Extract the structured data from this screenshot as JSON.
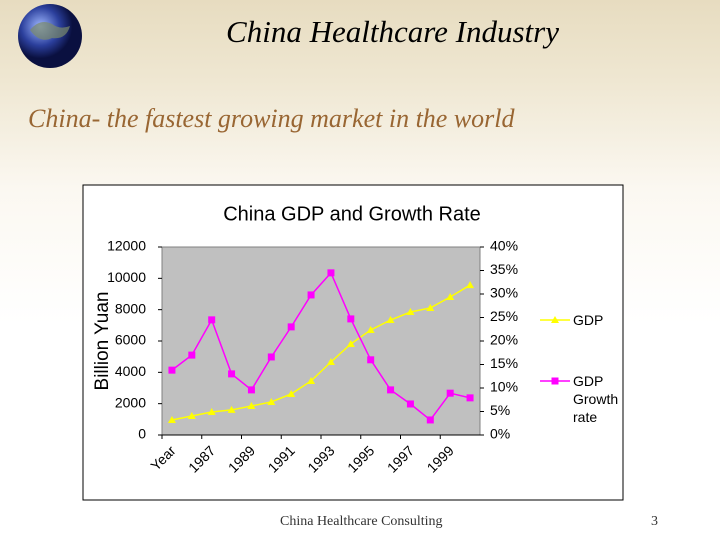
{
  "slide": {
    "title": "China Healthcare Industry",
    "subtitle": "China- the fastest growing market in the world",
    "footer": "China Healthcare Consulting",
    "page_number": "3"
  },
  "chart_data": {
    "type": "line",
    "title": "China GDP  and Growth Rate",
    "y_label": "Billion Yuan",
    "categories": [
      "Year",
      null,
      "1987",
      null,
      "1989",
      null,
      "1991",
      null,
      "1993",
      null,
      "1995",
      null,
      "1997",
      null,
      "1999",
      null
    ],
    "series": [
      {
        "name": "GDP",
        "color": "#ffff00",
        "marker": "triangle",
        "values": [
          960,
          1210,
          1470,
          1600,
          1850,
          2110,
          2620,
          3450,
          4660,
          5810,
          6700,
          7340,
          7850,
          8110,
          8810,
          9570
        ]
      },
      {
        "name": "GDP Growth rate",
        "color": "#ff00ff",
        "marker": "square",
        "axis": "y2",
        "values": [
          13.8,
          17.0,
          24.5,
          13.0,
          9.6,
          16.6,
          23.0,
          29.8,
          34.5,
          24.7,
          16.0,
          9.6,
          6.6,
          3.2,
          8.9,
          7.9
        ]
      }
    ],
    "ylim": [
      0,
      12000
    ],
    "yticks": [
      0,
      2000,
      4000,
      6000,
      8000,
      10000,
      12000
    ],
    "y2lim": [
      0,
      40
    ],
    "y2ticks": [
      {
        "value": 0,
        "label": "0%"
      },
      {
        "value": 5,
        "label": "5%"
      },
      {
        "value": 10,
        "label": "10%"
      },
      {
        "value": 15,
        "label": "15%"
      },
      {
        "value": 20,
        "label": "20%"
      },
      {
        "value": 25,
        "label": "25%"
      },
      {
        "value": 30,
        "label": "30%"
      },
      {
        "value": 35,
        "label": "35%"
      },
      {
        "value": 40,
        "label": "40%"
      }
    ],
    "legend": "right"
  }
}
